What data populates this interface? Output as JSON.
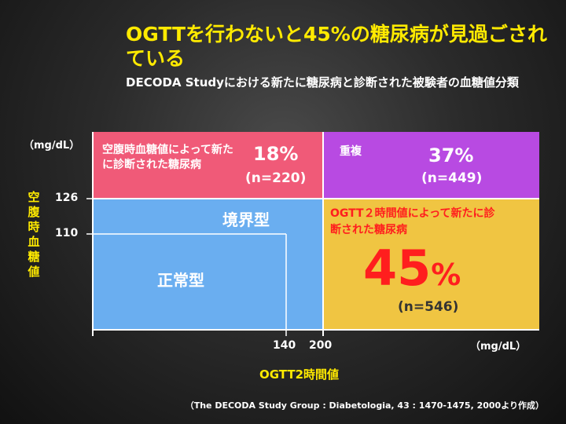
{
  "title": "OGTTを行わないと45%の糖尿病が見過ごされている",
  "subtitle": "DECODA Studyにおける新たに糖尿病と診断された被験者の血糖値分類",
  "y_axis": {
    "label": "空腹時血糖値",
    "unit": "（mg/dL）",
    "ticks": [
      "126",
      "110"
    ]
  },
  "x_axis": {
    "label": "OGTT2時間値",
    "unit": "（mg/dL）",
    "ticks": [
      "140",
      "200"
    ]
  },
  "regions": {
    "fpg_only": {
      "label": "空腹時血糖値によって新たに診断された糖尿病",
      "percent": "18%",
      "n": "(n=220)",
      "color": "#f05a78"
    },
    "both": {
      "label": "重複",
      "percent": "37%",
      "n": "(n=449)",
      "color": "#b84ae2"
    },
    "igt": {
      "label": "境界型",
      "color": "#6aaef0"
    },
    "normal": {
      "label": "正常型"
    },
    "ogtt_only": {
      "label": "OGTT２時間値によって新たに診断された糖尿病",
      "percent_number": "45",
      "percent_sign": "%",
      "n": "(n=546)",
      "color": "#f0c542",
      "label_color": "#ff1e1e"
    }
  },
  "source": "（The DECODA Study Group : Diabetologia, 43 : 1470-1475, 2000より作成）"
}
